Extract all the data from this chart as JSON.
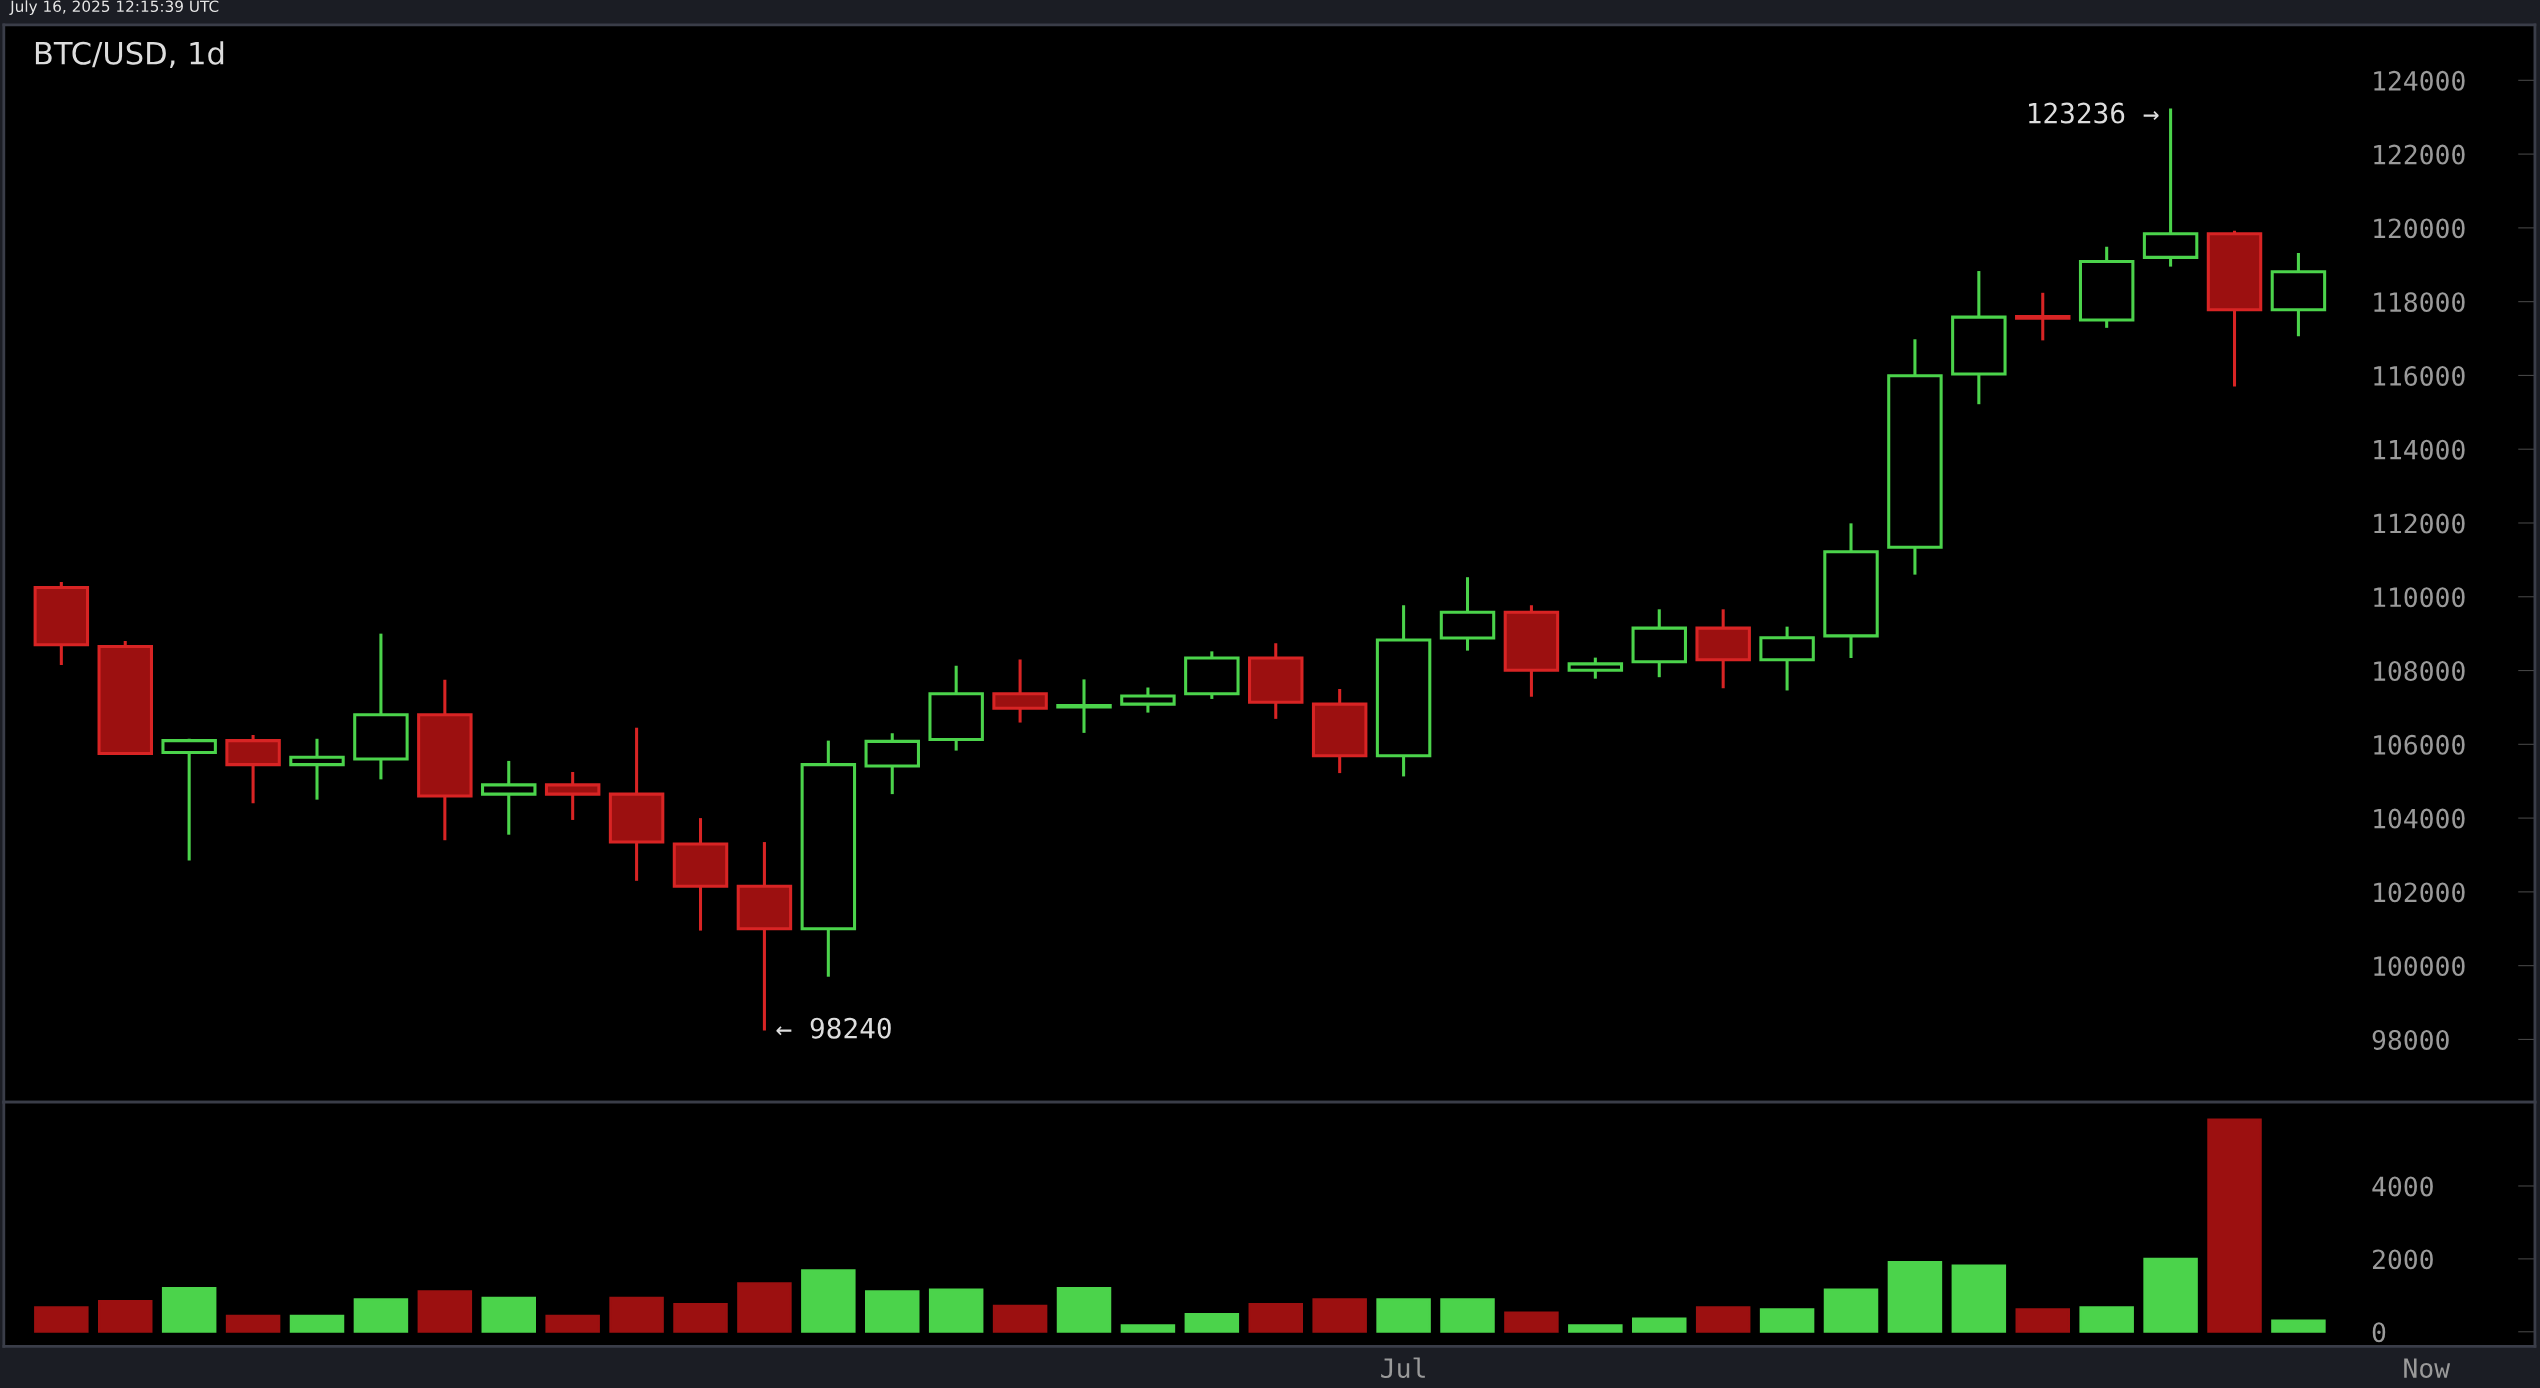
{
  "chart_data": [
    {
      "type": "candlestick",
      "title": "BTC/USD, 1d",
      "categories": [
        null,
        null,
        null,
        null,
        null,
        null,
        null,
        null,
        null,
        null,
        null,
        null,
        null,
        null,
        null,
        null,
        null,
        null,
        null,
        null,
        null,
        null,
        null,
        null,
        null,
        null,
        null,
        null,
        null,
        null,
        null,
        null,
        null,
        null,
        null,
        null,
        null,
        null
      ],
      "ohlc": [
        [
          110250,
          110400,
          108150,
          108700
        ],
        [
          108650,
          108800,
          105730,
          105750
        ],
        [
          105780,
          106150,
          102850,
          106100
        ],
        [
          106100,
          106250,
          104400,
          105450
        ],
        [
          105450,
          106150,
          104500,
          105650
        ],
        [
          105600,
          109000,
          105050,
          106800
        ],
        [
          106800,
          107750,
          103400,
          104600
        ],
        [
          104650,
          105550,
          103550,
          104900
        ],
        [
          104900,
          105250,
          103950,
          104650
        ],
        [
          104650,
          106450,
          102300,
          103350
        ],
        [
          103300,
          104000,
          100950,
          102150
        ],
        [
          102150,
          103350,
          98240,
          101000
        ],
        [
          101000,
          106100,
          99700,
          105450
        ],
        [
          105410,
          106300,
          104650,
          106080
        ],
        [
          106130,
          108130,
          105830,
          107370
        ],
        [
          107370,
          108300,
          106590,
          106980
        ],
        [
          107010,
          107760,
          106310,
          107050
        ],
        [
          107090,
          107540,
          106860,
          107310
        ],
        [
          107370,
          108520,
          107230,
          108340
        ],
        [
          108340,
          108740,
          106690,
          107140
        ],
        [
          107090,
          107500,
          105220,
          105690
        ],
        [
          105690,
          109770,
          105130,
          108830
        ],
        [
          108880,
          110530,
          108540,
          109580
        ],
        [
          109580,
          109770,
          107290,
          108010
        ],
        [
          108010,
          108350,
          107780,
          108180
        ],
        [
          108240,
          109660,
          107820,
          109150
        ],
        [
          109150,
          109660,
          107520,
          108290
        ],
        [
          108290,
          109190,
          107460,
          108890
        ],
        [
          108940,
          111990,
          108340,
          111220
        ],
        [
          111340,
          116980,
          110600,
          115990
        ],
        [
          116040,
          118830,
          115220,
          117580
        ],
        [
          117600,
          118240,
          116950,
          117550
        ],
        [
          117500,
          119490,
          117290,
          119090
        ],
        [
          119200,
          123236,
          118950,
          119840
        ],
        [
          119840,
          119920,
          115700,
          117780
        ],
        [
          117780,
          119320,
          117060,
          118810
        ],
        null,
        null
      ],
      "colors": [
        "#9c1010",
        "#9c1010",
        "#4bd34b",
        "#9c1010",
        "#4bd34b",
        "#4bd34b",
        "#9c1010",
        "#4bd34b",
        "#9c1010",
        "#9c1010",
        "#9c1010",
        "#9c1010",
        "#4bd34b",
        "#4bd34b",
        "#4bd34b",
        "#9c1010",
        "#4bd34b",
        "#4bd34b",
        "#4bd34b",
        "#9c1010",
        "#9c1010",
        "#4bd34b",
        "#4bd34b",
        "#9c1010",
        "#4bd34b",
        "#4bd34b",
        "#9c1010",
        "#4bd34b",
        "#4bd34b",
        "#4bd34b",
        "#4bd34b",
        "#9c1010",
        "#4bd34b",
        "#4bd34b",
        "#9c1010",
        "#4bd34b",
        null,
        null
      ],
      "ylim": [
        96300,
        125500
      ],
      "yticks": [
        98000,
        100000,
        102000,
        104000,
        106000,
        108000,
        110000,
        112000,
        114000,
        116000,
        118000,
        120000,
        122000,
        124000
      ],
      "tick_labels": "y",
      "grid": false,
      "legend": false,
      "annotations": [
        "123236 →",
        "← 98240",
        "July 16, 2025 12:15:39 UTC"
      ]
    },
    {
      "type": "bar",
      "categories": [
        null,
        null,
        null,
        null,
        null,
        null,
        null,
        null,
        null,
        null,
        null,
        null,
        null,
        null,
        null,
        null,
        null,
        null,
        null,
        null,
        null,
        "Jul",
        null,
        null,
        null,
        null,
        null,
        null,
        null,
        null,
        null,
        null,
        null,
        null,
        null,
        null,
        null,
        "Now"
      ],
      "values": [
        670,
        840,
        1200,
        440,
        440,
        890,
        1110,
        930,
        440,
        930,
        760,
        1330,
        1690,
        1110,
        1160,
        710,
        1200,
        180,
        490,
        760,
        890,
        890,
        890,
        530,
        180,
        360,
        670,
        620,
        1160,
        1910,
        1820,
        620,
        670,
        2000,
        5820,
        310,
        null,
        null
      ],
      "colors": [
        "#9c1010",
        "#9c1010",
        "#4bd34b",
        "#9c1010",
        "#4bd34b",
        "#4bd34b",
        "#9c1010",
        "#4bd34b",
        "#9c1010",
        "#9c1010",
        "#9c1010",
        "#9c1010",
        "#4bd34b",
        "#4bd34b",
        "#4bd34b",
        "#9c1010",
        "#4bd34b",
        "#4bd34b",
        "#4bd34b",
        "#9c1010",
        "#9c1010",
        "#4bd34b",
        "#4bd34b",
        "#9c1010",
        "#4bd34b",
        "#4bd34b",
        "#9c1010",
        "#4bd34b",
        "#4bd34b",
        "#4bd34b",
        "#4bd34b",
        "#9c1010",
        "#4bd34b",
        "#4bd34b",
        "#9c1010",
        "#4bd34b",
        null,
        null
      ],
      "ylim": [
        -400,
        6300
      ],
      "yticks": [
        0,
        2000,
        4000
      ],
      "grid": false,
      "legend": false
    }
  ]
}
